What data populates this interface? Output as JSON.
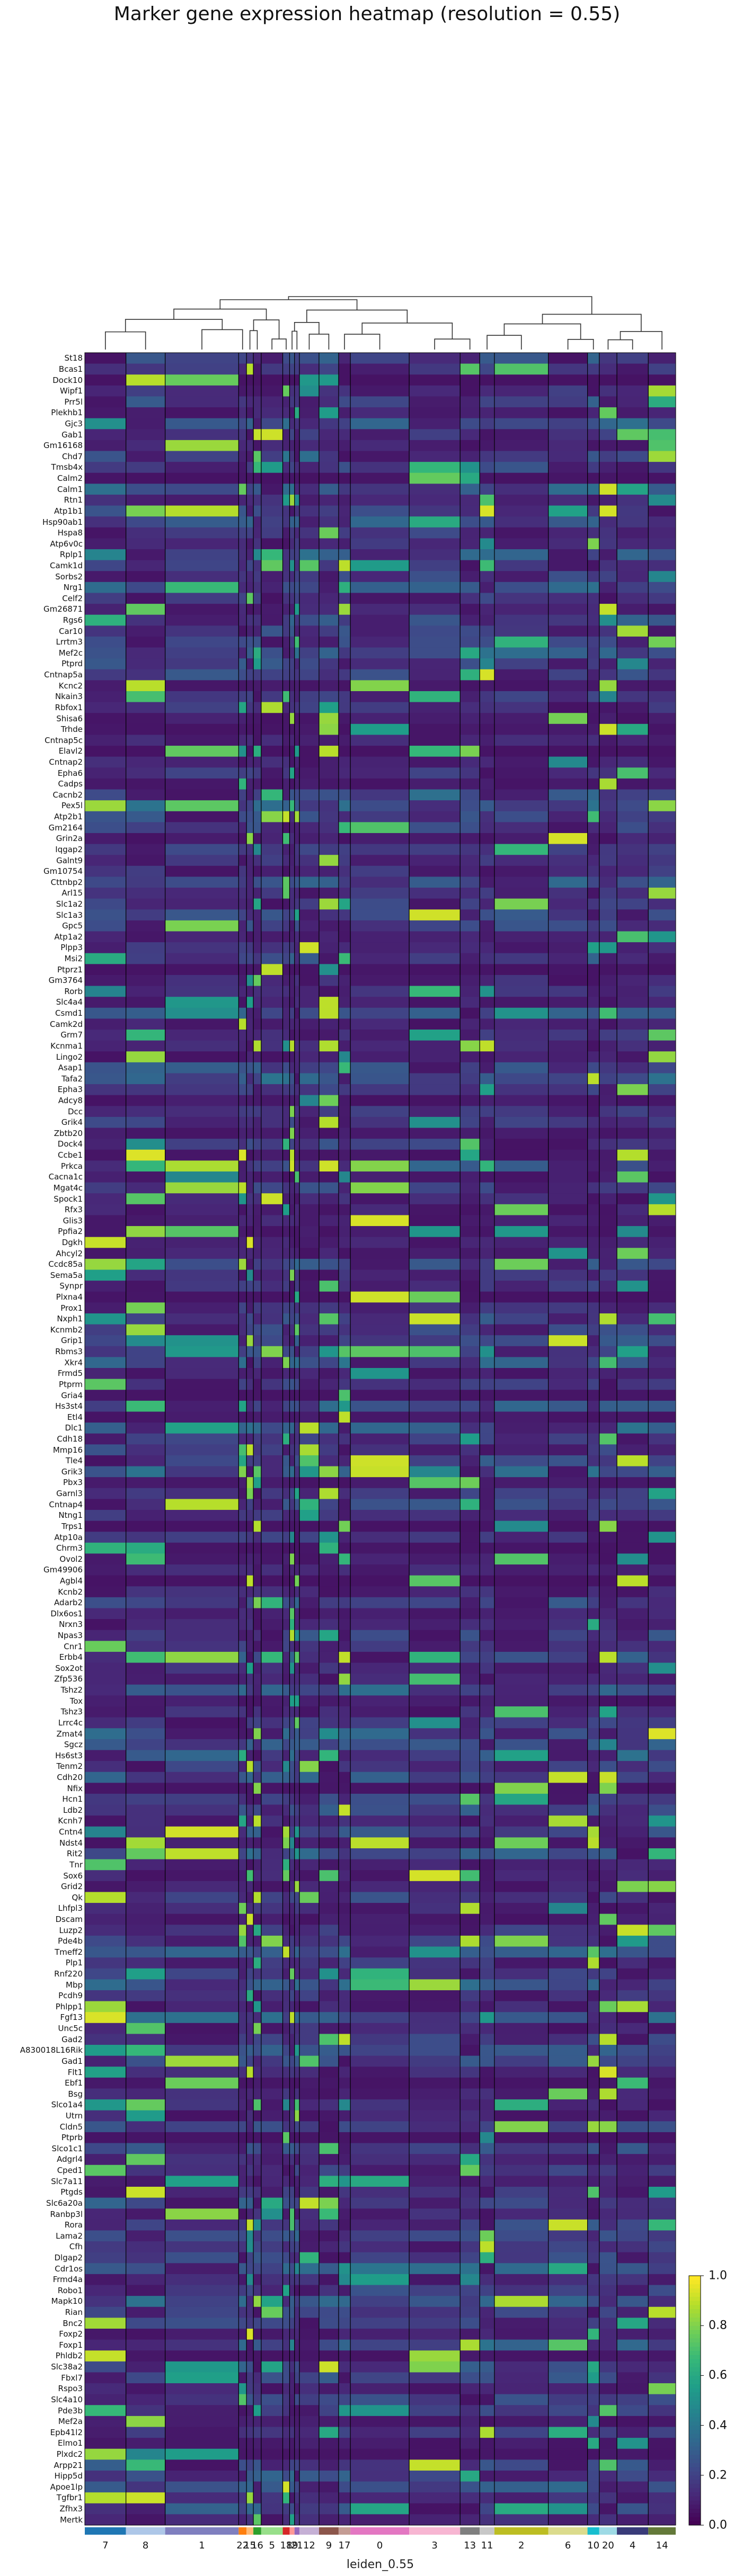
{
  "chart_data": {
    "type": "heatmap",
    "title": "Marker gene expression heatmap (resolution = 0.55)",
    "xlabel": "leiden_0.55",
    "ylabel": "",
    "colormap": "viridis",
    "colorbar": {
      "min": 0.0,
      "max": 1.0,
      "ticks": [
        "0.0",
        "0.2",
        "0.4",
        "0.6",
        "0.8",
        "1.0"
      ]
    },
    "dendrogram": "top",
    "genes": [
      "St18",
      "Bcas1",
      "Dock10",
      "Wipf1",
      "Prr5l",
      "Plekhb1",
      "Gjc3",
      "Gab1",
      "Gm16168",
      "Chd7",
      "Tmsb4x",
      "Calm2",
      "Calm1",
      "Rtn1",
      "Atp1b1",
      "Hsp90ab1",
      "Hspa8",
      "Atp6v0c",
      "Rplp1",
      "Camk1d",
      "Sorbs2",
      "Nrg1",
      "Celf2",
      "Gm26871",
      "Rgs6",
      "Car10",
      "Lrrtm3",
      "Mef2c",
      "Ptprd",
      "Cntnap5a",
      "Kcnc2",
      "Nkain3",
      "Rbfox1",
      "Shisa6",
      "Trhde",
      "Cntnap5c",
      "Elavl2",
      "Cntnap2",
      "Epha6",
      "Cadps",
      "Cacnb2",
      "Pex5l",
      "Atp2b1",
      "Gm2164",
      "Grin2a",
      "Iqgap2",
      "Galnt9",
      "Gm10754",
      "Cttnbp2",
      "Arl15",
      "Slc1a2",
      "Slc1a3",
      "Gpc5",
      "Atp1a2",
      "Plpp3",
      "Msi2",
      "Ptprz1",
      "Gm3764",
      "Rorb",
      "Slc4a4",
      "Csmd1",
      "Camk2d",
      "Grm7",
      "Kcnma1",
      "Lingo2",
      "Asap1",
      "Tafa2",
      "Epha3",
      "Adcy8",
      "Dcc",
      "Grik4",
      "Zbtb20",
      "Dock4",
      "Ccbe1",
      "Prkca",
      "Cacna1c",
      "Mgat4c",
      "Spock1",
      "Rfx3",
      "Glis3",
      "Ppfia2",
      "Dgkh",
      "Ahcyl2",
      "Ccdc85a",
      "Sema5a",
      "Synpr",
      "Plxna4",
      "Prox1",
      "Nxph1",
      "Kcnmb2",
      "Grip1",
      "Rbms3",
      "Xkr4",
      "Frmd5",
      "Ptprm",
      "Gria4",
      "Hs3st4",
      "Etl4",
      "Dlc1",
      "Cdh18",
      "Mmp16",
      "Tle4",
      "Grik3",
      "Pbx3",
      "Garnl3",
      "Cntnap4",
      "Ntng1",
      "Trps1",
      "Atp10a",
      "Chrm3",
      "Ovol2",
      "Gm49906",
      "Agbl4",
      "Kcnb2",
      "Adarb2",
      "Dlx6os1",
      "Nrxn3",
      "Npas3",
      "Cnr1",
      "Erbb4",
      "Sox2ot",
      "Zfp536",
      "Tshz2",
      "Tox",
      "Tshz3",
      "Lrrc4c",
      "Zmat4",
      "Sgcz",
      "Hs6st3",
      "Tenm2",
      "Cdh20",
      "Nfix",
      "Hcn1",
      "Ldb2",
      "Kcnh7",
      "Cntn4",
      "Ndst4",
      "Rit2",
      "Tnr",
      "Sox6",
      "Grid2",
      "Qk",
      "Lhfpl3",
      "Dscam",
      "Luzp2",
      "Pde4b",
      "Tmeff2",
      "Plp1",
      "Rnf220",
      "Mbp",
      "Pcdh9",
      "Phlpp1",
      "Fgf13",
      "Unc5c",
      "Gad2",
      "A830018L16Rik",
      "Gad1",
      "Flt1",
      "Ebf1",
      "Bsg",
      "Slco1a4",
      "Utrn",
      "Cldn5",
      "Ptprb",
      "Slco1c1",
      "Adgrl4",
      "Cped1",
      "Slc7a11",
      "Ptgds",
      "Slc6a20a",
      "Ranbp3l",
      "Rora",
      "Lama2",
      "Cfh",
      "Dlgap2",
      "Cdr1os",
      "Frmd4a",
      "Robo1",
      "Mapk10",
      "Rian",
      "Bnc2",
      "Foxp2",
      "Foxp1",
      "Phldb2",
      "Slc38a2",
      "Fbxl7",
      "Rspo3",
      "Slc4a10",
      "Pde3b",
      "Mef2a",
      "Epb41l2",
      "Elmo1",
      "Plxdc2",
      "Arpp21",
      "Hipp5d",
      "Apoe1lp",
      "Tgfbr1",
      "Zfhx3",
      "Mertk"
    ],
    "clusters": [
      "7",
      "8",
      "1",
      "22",
      "15",
      "16",
      "5",
      "18",
      "19",
      "21",
      "12",
      "9",
      "17",
      "0",
      "3",
      "13",
      "11",
      "2",
      "6",
      "10",
      "20",
      "4",
      "14"
    ],
    "cluster_colors": [
      "#1f77b4",
      "#aec7e8",
      "#7f7fbf",
      "#ff7f0e",
      "#ffbb78",
      "#2ca02c",
      "#98df8a",
      "#d62728",
      "#ff9896",
      "#9467bd",
      "#c5b0d5",
      "#8c564b",
      "#c49c94",
      "#e377c2",
      "#f7b6d2",
      "#7f7f7f",
      "#c7c7c7",
      "#bcbd22",
      "#dbdb8d",
      "#17becf",
      "#9edae5",
      "#393b79",
      "#637939"
    ],
    "cluster_widths": [
      42,
      40,
      75,
      8,
      7,
      8,
      22,
      7,
      5,
      5,
      20,
      20,
      12,
      60,
      52,
      20,
      15,
      55,
      40,
      12,
      18,
      32,
      28
    ]
  },
  "labels": {
    "title": "Marker gene expression heatmap (resolution = 0.55)",
    "xlabel": "leiden_0.55",
    "cluster_tick_7": "7",
    "cluster_tick_8": "8",
    "cluster_tick_1": "1",
    "cluster_tick_22": "22",
    "cluster_tick_15": "15",
    "cluster_tick_16": "16",
    "cluster_tick_5": "5",
    "cluster_tick_18": "18",
    "cluster_tick_19": "19",
    "cluster_tick_21": "21",
    "cluster_tick_12": "12",
    "cluster_tick_9": "9",
    "cluster_tick_17": "17",
    "cluster_tick_0": "0",
    "cluster_tick_3": "3",
    "cluster_tick_13": "13",
    "cluster_tick_11": "11",
    "cluster_tick_2": "2",
    "cluster_tick_6": "6",
    "cluster_tick_10": "10",
    "cluster_tick_20": "20",
    "cluster_tick_4": "4",
    "cluster_tick_14": "14"
  }
}
